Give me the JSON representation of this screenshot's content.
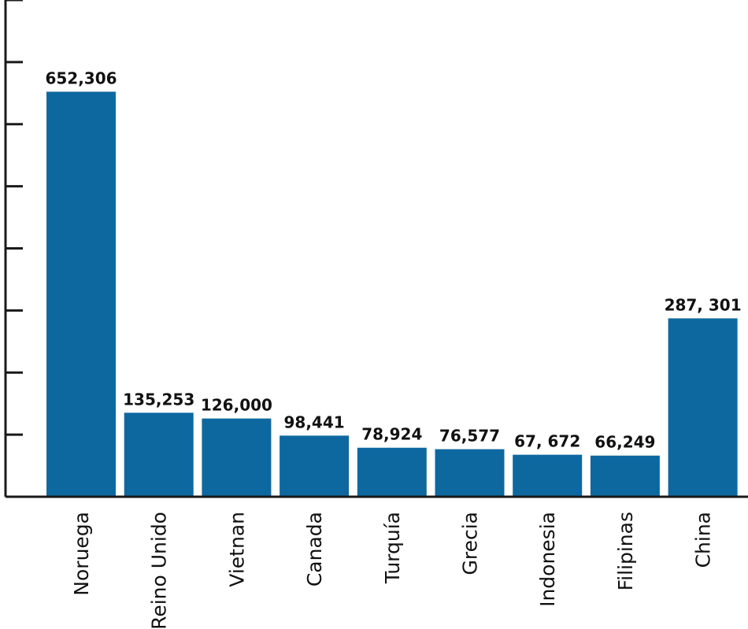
{
  "chart_data": {
    "type": "bar",
    "categories": [
      "Noruega",
      "Reino Unido",
      "Vietnan",
      "Canada",
      "Turquía",
      "Grecia",
      "Indonesia",
      "Filipinas",
      "China"
    ],
    "values": [
      652306,
      135253,
      126000,
      98441,
      78924,
      76577,
      67672,
      66249,
      287301
    ],
    "value_labels": [
      "652,306",
      "135,253",
      "126,000",
      "98,441",
      "78,924",
      "76,577",
      "67, 672",
      "66,249",
      "287, 301"
    ],
    "title": "",
    "xlabel": "",
    "ylabel": "",
    "ylim": [
      0,
      800000
    ],
    "y_tick_step": 100000,
    "y_tick_labels_shown": false,
    "grid": false,
    "legend": "none",
    "bar_color": "#0e68a0",
    "axis_color": "#1a1a1a"
  }
}
